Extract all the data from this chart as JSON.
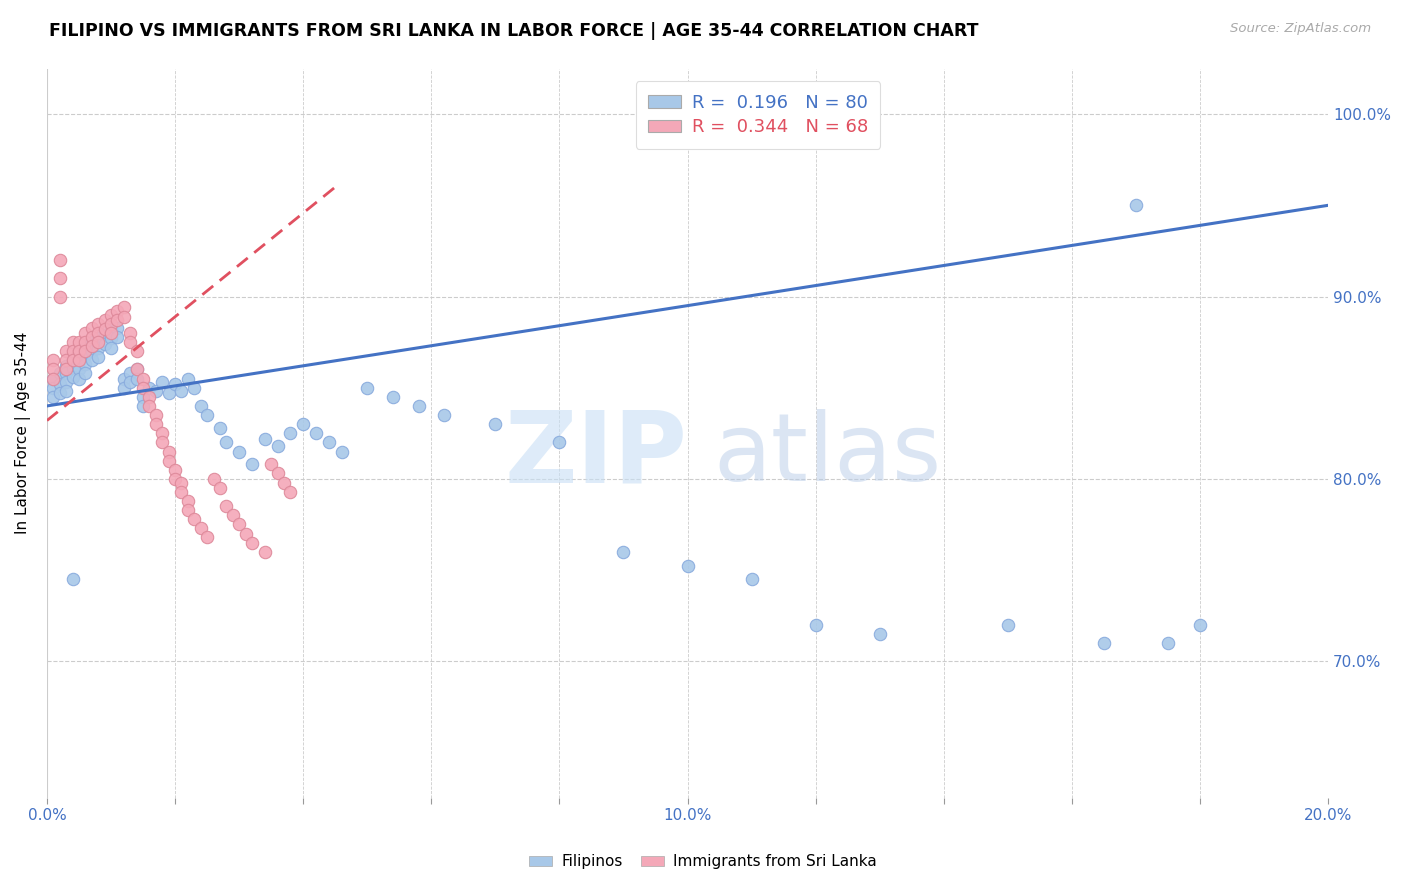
{
  "title": "FILIPINO VS IMMIGRANTS FROM SRI LANKA IN LABOR FORCE | AGE 35-44 CORRELATION CHART",
  "source": "Source: ZipAtlas.com",
  "ylabel": "In Labor Force | Age 35-44",
  "xlim": [
    0.0,
    0.2
  ],
  "ylim": [
    0.625,
    1.025
  ],
  "ytick_values": [
    0.7,
    0.8,
    0.9,
    1.0
  ],
  "ytick_labels": [
    "70.0%",
    "80.0%",
    "90.0%",
    "100.0%"
  ],
  "xtick_values": [
    0.0,
    0.02,
    0.04,
    0.06,
    0.08,
    0.1,
    0.12,
    0.14,
    0.16,
    0.18,
    0.2
  ],
  "xtick_labels": [
    "0.0%",
    "",
    "",
    "",
    "",
    "10.0%",
    "",
    "",
    "",
    "",
    "20.0%"
  ],
  "blue_R": "0.196",
  "blue_N": "80",
  "pink_R": "0.344",
  "pink_N": "68",
  "legend1_label": "Filipinos",
  "legend2_label": "Immigrants from Sri Lanka",
  "blue_color": "#a8c8e8",
  "pink_color": "#f4a8b8",
  "blue_line_color": "#4472c4",
  "pink_line_color": "#e05060",
  "tick_color": "#4472c4",
  "blue_scatter_x": [
    0.001,
    0.001,
    0.001,
    0.002,
    0.002,
    0.002,
    0.003,
    0.003,
    0.003,
    0.003,
    0.004,
    0.004,
    0.004,
    0.005,
    0.005,
    0.005,
    0.005,
    0.006,
    0.006,
    0.006,
    0.006,
    0.007,
    0.007,
    0.007,
    0.008,
    0.008,
    0.008,
    0.009,
    0.009,
    0.01,
    0.01,
    0.01,
    0.011,
    0.011,
    0.012,
    0.012,
    0.013,
    0.013,
    0.014,
    0.014,
    0.015,
    0.015,
    0.016,
    0.017,
    0.018,
    0.019,
    0.02,
    0.021,
    0.022,
    0.023,
    0.024,
    0.025,
    0.027,
    0.028,
    0.03,
    0.032,
    0.034,
    0.036,
    0.038,
    0.04,
    0.042,
    0.044,
    0.046,
    0.05,
    0.054,
    0.058,
    0.062,
    0.07,
    0.08,
    0.09,
    0.1,
    0.11,
    0.12,
    0.13,
    0.15,
    0.165,
    0.175,
    0.18,
    0.004,
    0.17
  ],
  "blue_scatter_y": [
    0.855,
    0.85,
    0.845,
    0.858,
    0.852,
    0.847,
    0.862,
    0.858,
    0.853,
    0.848,
    0.866,
    0.861,
    0.856,
    0.87,
    0.865,
    0.86,
    0.855,
    0.872,
    0.868,
    0.863,
    0.858,
    0.875,
    0.87,
    0.865,
    0.877,
    0.872,
    0.867,
    0.879,
    0.874,
    0.882,
    0.877,
    0.872,
    0.883,
    0.878,
    0.855,
    0.85,
    0.858,
    0.853,
    0.86,
    0.855,
    0.845,
    0.84,
    0.85,
    0.848,
    0.853,
    0.847,
    0.852,
    0.848,
    0.855,
    0.85,
    0.84,
    0.835,
    0.828,
    0.82,
    0.815,
    0.808,
    0.822,
    0.818,
    0.825,
    0.83,
    0.825,
    0.82,
    0.815,
    0.85,
    0.845,
    0.84,
    0.835,
    0.83,
    0.82,
    0.76,
    0.752,
    0.745,
    0.72,
    0.715,
    0.72,
    0.71,
    0.71,
    0.72,
    0.745,
    0.95
  ],
  "pink_scatter_x": [
    0.001,
    0.001,
    0.001,
    0.002,
    0.002,
    0.002,
    0.003,
    0.003,
    0.003,
    0.004,
    0.004,
    0.004,
    0.005,
    0.005,
    0.005,
    0.006,
    0.006,
    0.006,
    0.007,
    0.007,
    0.007,
    0.008,
    0.008,
    0.008,
    0.009,
    0.009,
    0.01,
    0.01,
    0.01,
    0.011,
    0.011,
    0.012,
    0.012,
    0.013,
    0.013,
    0.014,
    0.014,
    0.015,
    0.015,
    0.016,
    0.016,
    0.017,
    0.017,
    0.018,
    0.018,
    0.019,
    0.019,
    0.02,
    0.02,
    0.021,
    0.021,
    0.022,
    0.022,
    0.023,
    0.024,
    0.025,
    0.026,
    0.027,
    0.028,
    0.029,
    0.03,
    0.031,
    0.032,
    0.034,
    0.035,
    0.036,
    0.037,
    0.038
  ],
  "pink_scatter_y": [
    0.865,
    0.86,
    0.855,
    0.92,
    0.91,
    0.9,
    0.87,
    0.865,
    0.86,
    0.875,
    0.87,
    0.865,
    0.875,
    0.87,
    0.865,
    0.88,
    0.875,
    0.87,
    0.883,
    0.878,
    0.873,
    0.885,
    0.88,
    0.875,
    0.887,
    0.882,
    0.89,
    0.885,
    0.88,
    0.892,
    0.887,
    0.894,
    0.889,
    0.88,
    0.875,
    0.87,
    0.86,
    0.855,
    0.85,
    0.845,
    0.84,
    0.835,
    0.83,
    0.825,
    0.82,
    0.815,
    0.81,
    0.805,
    0.8,
    0.798,
    0.793,
    0.788,
    0.783,
    0.778,
    0.773,
    0.768,
    0.8,
    0.795,
    0.785,
    0.78,
    0.775,
    0.77,
    0.765,
    0.76,
    0.808,
    0.803,
    0.798,
    0.793
  ]
}
